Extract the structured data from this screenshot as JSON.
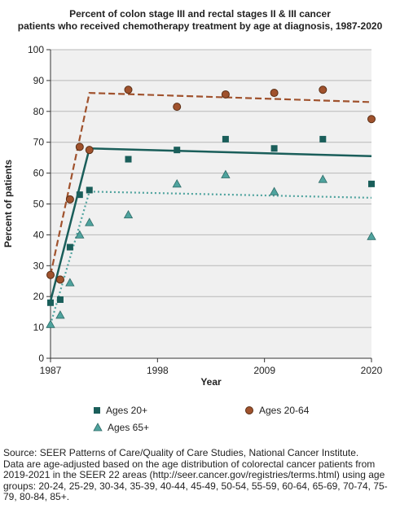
{
  "chart_data": {
    "type": "scatter",
    "title_line1": "Percent of colon stage III and rectal stages II & III cancer",
    "title_line2": "patients who received chemotherapy treatment by age at diagnosis, 1987-2020",
    "xlabel": "Year",
    "ylabel": "Percent of patients",
    "xlim": [
      1987,
      2020
    ],
    "ylim": [
      0,
      100
    ],
    "xticks": [
      1987,
      1998,
      2009,
      2020
    ],
    "yticks": [
      0,
      10,
      20,
      30,
      40,
      50,
      60,
      70,
      80,
      90,
      100
    ],
    "grid": "horizontal",
    "legend_position": "bottom",
    "series": [
      {
        "name": "Ages 20+",
        "marker": "square",
        "color": "#1a5e5a",
        "line_style": "solid",
        "x": [
          1987,
          1988,
          1989,
          1990,
          1991,
          1995,
          2000,
          2005,
          2010,
          2015,
          2020
        ],
        "y": [
          18,
          19,
          36,
          53,
          54.5,
          64.5,
          67.5,
          71,
          68,
          71,
          56.5
        ],
        "trend_x": [
          1987,
          1991,
          2020
        ],
        "trend_y": [
          18.5,
          68,
          65.5
        ]
      },
      {
        "name": "Ages 20-64",
        "marker": "circle",
        "color": "#a0522d",
        "line_style": "dashed",
        "x": [
          1987,
          1988,
          1989,
          1990,
          1991,
          1995,
          2000,
          2005,
          2010,
          2015,
          2020
        ],
        "y": [
          27,
          25.5,
          51.5,
          68.5,
          67.5,
          87,
          81.5,
          85.5,
          86,
          87,
          77.5
        ],
        "trend_x": [
          1987,
          1991,
          2020
        ],
        "trend_y": [
          27,
          86,
          83
        ]
      },
      {
        "name": "Ages 65+",
        "marker": "triangle",
        "color": "#4fa39e",
        "line_style": "dotted",
        "x": [
          1987,
          1988,
          1989,
          1990,
          1991,
          1995,
          2000,
          2005,
          2010,
          2015,
          2020
        ],
        "y": [
          11,
          14,
          24.5,
          40,
          44,
          46.5,
          56.5,
          59.5,
          54,
          58,
          39.5
        ],
        "trend_x": [
          1987,
          1991,
          2020
        ],
        "trend_y": [
          11,
          54,
          52
        ]
      }
    ]
  },
  "source": {
    "line1": "Source: SEER Patterns of Care/Quality of Care Studies, National Cancer Institute.",
    "line2": "Data are age-adjusted based on the age distribution of colorectal cancer patients from",
    "line3": "2019-2021 in the SEER 22 areas (http://seer.cancer.gov/registries/terms.html) using age",
    "line4": "groups: 20-24, 25-29, 30-34, 35-39, 40-44, 45-49, 50-54, 55-59, 60-64, 65-69, 70-74, 75-",
    "line5": "79, 80-84, 85+."
  }
}
